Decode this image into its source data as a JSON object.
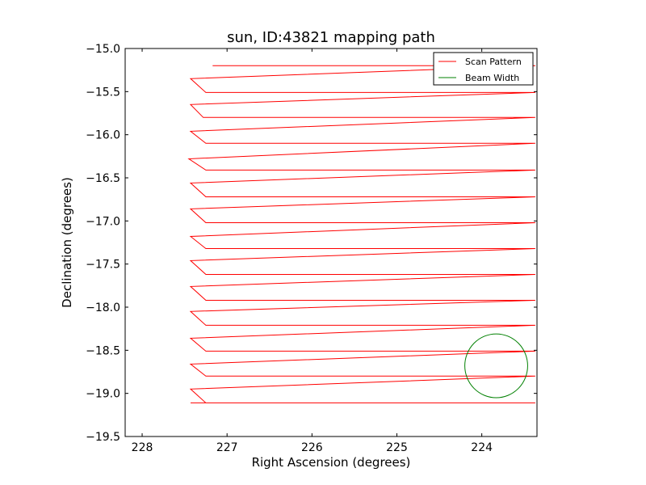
{
  "chart_data": {
    "type": "line",
    "title": "sun, ID:43821 mapping path",
    "xlabel": "Right Ascension (degrees)",
    "ylabel": "Declination (degrees)",
    "xlim": [
      228.2,
      223.35
    ],
    "ylim": [
      -19.5,
      -15.0
    ],
    "x_inverted": true,
    "xticks": [
      228,
      227,
      226,
      225,
      224
    ],
    "xtick_labels": [
      "228",
      "227",
      "226",
      "225",
      "224"
    ],
    "yticks": [
      -15.0,
      -15.5,
      -16.0,
      -16.5,
      -17.0,
      -17.5,
      -18.0,
      -18.5,
      -19.0,
      -19.5
    ],
    "ytick_labels": [
      "−15.0",
      "−15.5",
      "−16.0",
      "−16.5",
      "−17.0",
      "−17.5",
      "−18.0",
      "−18.5",
      "−19.0",
      "−19.5"
    ],
    "grid": false,
    "legend": {
      "position": "top-right",
      "entries": [
        "Scan Pattern",
        "Beam Width"
      ]
    },
    "series": [
      {
        "name": "Scan Pattern",
        "color": "#ff0000",
        "kind": "line",
        "x": [
          227.17,
          223.37,
          227.43,
          227.25,
          223.37,
          227.43,
          227.28,
          223.37,
          227.43,
          227.25,
          223.37,
          227.45,
          227.25,
          223.37,
          227.43,
          227.25,
          223.37,
          227.43,
          227.25,
          223.37,
          227.43,
          227.25,
          223.37,
          227.43,
          227.25,
          223.37,
          227.43,
          227.25,
          223.37,
          227.43,
          227.25,
          223.37,
          227.43,
          227.25,
          223.37,
          227.43,
          227.25,
          223.37,
          227.43,
          227.25,
          223.37,
          227.43,
          227.25,
          223.37
        ],
        "y": [
          -15.2,
          -15.2,
          -15.35,
          -15.51,
          -15.51,
          -15.65,
          -15.8,
          -15.8,
          -15.96,
          -16.1,
          -16.1,
          -16.28,
          -16.41,
          -16.41,
          -16.56,
          -16.72,
          -16.72,
          -16.86,
          -17.02,
          -17.02,
          -17.18,
          -17.32,
          -17.32,
          -17.46,
          -17.62,
          -17.62,
          -17.76,
          -17.92,
          -17.92,
          -18.05,
          -18.21,
          -18.21,
          -18.36,
          -18.51,
          -18.51,
          -18.66,
          -18.8,
          -18.8,
          -18.95,
          -19.11,
          -19.11,
          -19.11,
          -19.11,
          -19.11
        ]
      },
      {
        "name": "Beam Width",
        "color": "#008000",
        "kind": "circle",
        "center": [
          223.83,
          -18.68
        ],
        "radius_deg": 0.37
      }
    ]
  }
}
